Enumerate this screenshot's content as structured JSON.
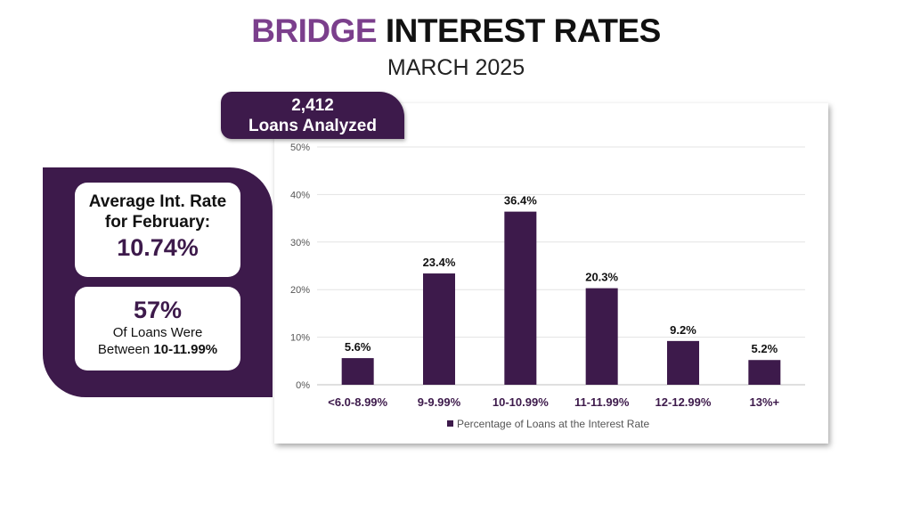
{
  "header": {
    "title_accent": "BRIDGE",
    "title_rest": "INTEREST RATES",
    "subtitle": "MARCH 2025"
  },
  "loans_badge": {
    "count": "2,412",
    "label": "Loans Analyzed"
  },
  "summary": {
    "avg_label_line1": "Average Int. Rate",
    "avg_label_line2": "for February:",
    "avg_value": "10.74%",
    "share_value": "57%",
    "share_line1": "Of Loans Were",
    "share_line2_prefix": "Between ",
    "share_line2_range": "10-11.99%"
  },
  "colors": {
    "bar": "#3d1a4b",
    "accent": "#7b3f8c",
    "category_label": "#3d1a4b"
  },
  "chart_data": {
    "type": "bar",
    "categories": [
      "<6.0-8.99%",
      "9-9.99%",
      "10-10.99%",
      "11-11.99%",
      "12-12.99%",
      "13%+"
    ],
    "series": [
      {
        "name": "Percentage of Loans at the Interest Rate",
        "values": [
          5.6,
          23.4,
          36.4,
          20.3,
          9.2,
          5.2
        ],
        "data_labels": [
          "5.6%",
          "23.4%",
          "36.4%",
          "20.3%",
          "9.2%",
          "5.2%"
        ]
      }
    ],
    "yticks": [
      0,
      10,
      20,
      30,
      40,
      50
    ],
    "ytick_labels": [
      "0%",
      "10%",
      "20%",
      "30%",
      "40%",
      "50%"
    ],
    "ylim": [
      0,
      50
    ],
    "grid": true,
    "legend": "bottom"
  }
}
